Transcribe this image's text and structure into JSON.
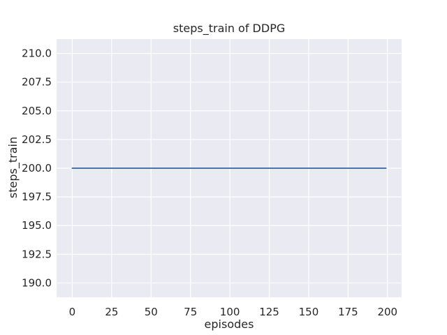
{
  "style": {
    "figure_bg": "#ffffff",
    "axes_bg": "#eaeaf2",
    "grid_color": "#ffffff",
    "text_color": "#262626",
    "line_color": "#4c72b0"
  },
  "chart_data": {
    "type": "line",
    "title": "steps_train of DDPG",
    "xlabel": "episodes",
    "ylabel": "steps_train",
    "x_ticks": [
      0,
      25,
      50,
      75,
      100,
      125,
      150,
      175,
      200
    ],
    "x_tick_labels": [
      "0",
      "25",
      "50",
      "75",
      "100",
      "125",
      "150",
      "175",
      "200"
    ],
    "y_ticks": [
      190.0,
      192.5,
      195.0,
      197.5,
      200.0,
      202.5,
      205.0,
      207.5,
      210.0
    ],
    "y_tick_labels": [
      "190.0",
      "192.5",
      "195.0",
      "197.5",
      "200.0",
      "202.5",
      "205.0",
      "207.5",
      "210.0"
    ],
    "xlim": [
      -9.95,
      208.95
    ],
    "ylim": [
      188.75,
      211.25
    ],
    "grid": true,
    "legend_visible": false,
    "series": [
      {
        "name": "steps_train",
        "color": "#4c72b0",
        "x": [
          0,
          199
        ],
        "y": [
          200,
          200
        ]
      }
    ]
  }
}
